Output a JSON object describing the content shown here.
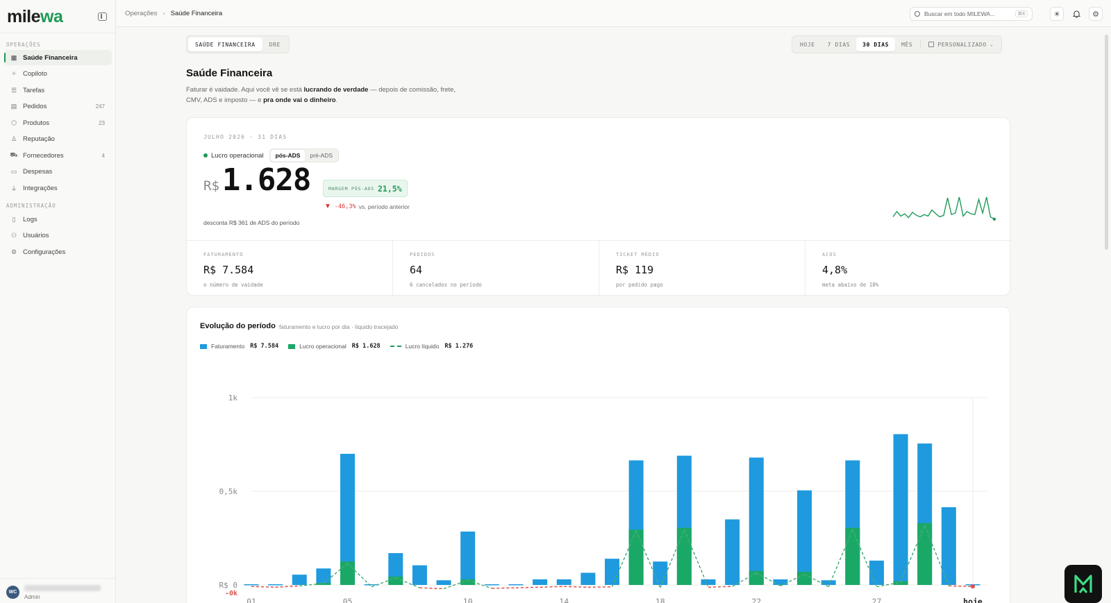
{
  "app": {
    "logo_main": "mile",
    "logo_accent": "wa",
    "brand_color": "#1e9a57"
  },
  "sidebar": {
    "section_ops": "OPERAÇÕES",
    "section_admin": "ADMINISTRAÇÃO",
    "items": [
      {
        "label": "Saúde Financeira",
        "icon": "grid-icon",
        "count": ""
      },
      {
        "label": "Copiloto",
        "icon": "sparkle-icon",
        "count": ""
      },
      {
        "label": "Tarefas",
        "icon": "checklist-icon",
        "count": ""
      },
      {
        "label": "Pedidos",
        "icon": "receipt-icon",
        "count": "247"
      },
      {
        "label": "Produtos",
        "icon": "box-icon",
        "count": "23"
      },
      {
        "label": "Reputação",
        "icon": "award-icon",
        "count": ""
      },
      {
        "label": "Fornecedores",
        "icon": "truck-icon",
        "count": "4"
      },
      {
        "label": "Despesas",
        "icon": "wallet-icon",
        "count": ""
      },
      {
        "label": "Integrações",
        "icon": "plug-icon",
        "count": ""
      }
    ],
    "admin_items": [
      {
        "label": "Logs",
        "icon": "file-icon"
      },
      {
        "label": "Usuários",
        "icon": "users-icon"
      },
      {
        "label": "Configurações",
        "icon": "gear-icon"
      }
    ],
    "user": {
      "initials": "WC",
      "role": "Admin"
    }
  },
  "topbar": {
    "breadcrumb_parent": "Operações",
    "breadcrumb_current": "Saúde Financeira",
    "search_placeholder": "Buscar em todo MILEWA...",
    "search_shortcut": "⌘K"
  },
  "view_toggle": {
    "options": [
      "SAÚDE FINANCEIRA",
      "DRE"
    ],
    "selected": "SAÚDE FINANCEIRA"
  },
  "range": {
    "options": [
      "HOJE",
      "7 DIAS",
      "30 DIAS",
      "MÊS"
    ],
    "selected": "30 DIAS",
    "custom": "PERSONALIZADO"
  },
  "page": {
    "title": "Saúde Financeira",
    "desc_1": "Faturar é vaidade. Aqui você vê se está ",
    "desc_b1": "lucrando de verdade",
    "desc_2": " — depois de comissão, frete, CMV, ADS e imposto — e ",
    "desc_b2": "pra onde vai o dinheiro",
    "desc_3": "."
  },
  "hero": {
    "period": "JULHO 2026 · 31 DIAS",
    "metric_name": "Lucro operacional",
    "ads_options": [
      "pós-ADS",
      "pré-ADS"
    ],
    "ads_selected": "pós-ADS",
    "currency": "R$",
    "value": "1.628",
    "margin_label": "MARGEM PÓS-ADS",
    "margin_value": "21,5%",
    "change_pct": "-46,3%",
    "change_text": "vs. período anterior",
    "note": "desconta R$ 361 de ADS do período",
    "sparkline": [
      5,
      12,
      6,
      9,
      4,
      11,
      7,
      5,
      8,
      6,
      14,
      9,
      5,
      7,
      30,
      8,
      10,
      31,
      6,
      12,
      9,
      8,
      28,
      10,
      31,
      5,
      2
    ]
  },
  "kpis": [
    {
      "label": "FATURAMENTO",
      "value": "R$ 7.584",
      "sub": "o número de vaidade"
    },
    {
      "label": "PEDIDOS",
      "value": "64",
      "sub": "6 cancelados no período"
    },
    {
      "label": "TICKET MÉDIO",
      "value": "R$ 119",
      "sub": "por pedido pago"
    },
    {
      "label": "ACOS",
      "value": "4,8%",
      "sub": "meta abaixo de 10%"
    }
  ],
  "chart_section": {
    "title": "Evolução do período",
    "subtitle": "faturamento e lucro por dia · líquido tracejado",
    "legend": [
      {
        "name": "Faturamento",
        "value": "R$ 7.584",
        "color": "#1f9ade"
      },
      {
        "name": "Lucro operacional",
        "value": "R$ 1.628",
        "color": "#1aa866"
      },
      {
        "name": "Lucro líquido",
        "value": "R$ 1.276",
        "color": "#1e9a57"
      }
    ]
  },
  "chart_data": {
    "type": "bar",
    "y_ticks": [
      "1k",
      "0,5k",
      "R$ 0",
      "-0k"
    ],
    "ylim": [
      -30,
      1000
    ],
    "x_tick_labels": {
      "1": "01",
      "5": "05",
      "10": "10",
      "14": "14",
      "18": "18",
      "22": "22",
      "27": "27",
      "31": "hoje"
    },
    "days": [
      1,
      2,
      3,
      4,
      5,
      6,
      7,
      8,
      9,
      10,
      11,
      12,
      13,
      14,
      15,
      16,
      17,
      18,
      19,
      20,
      21,
      22,
      23,
      24,
      25,
      26,
      27,
      28,
      29,
      30,
      31
    ],
    "series": [
      {
        "name": "Faturamento",
        "values": [
          0,
          0,
          55,
          88,
          700,
          0,
          170,
          105,
          25,
          285,
          0,
          0,
          30,
          30,
          65,
          140,
          665,
          125,
          690,
          30,
          350,
          680,
          30,
          505,
          25,
          665,
          130,
          805,
          755,
          415,
          0
        ]
      },
      {
        "name": "Lucro operacional",
        "values": [
          0,
          0,
          0,
          10,
          125,
          0,
          45,
          0,
          0,
          30,
          0,
          0,
          0,
          0,
          0,
          0,
          295,
          0,
          305,
          0,
          0,
          75,
          0,
          70,
          0,
          305,
          0,
          20,
          330,
          0,
          0
        ]
      },
      {
        "name": "Lucro líquido",
        "values": [
          -8,
          -12,
          -5,
          8,
          115,
          -10,
          38,
          -15,
          -20,
          25,
          -18,
          -15,
          -12,
          -8,
          -12,
          -10,
          290,
          -15,
          295,
          -12,
          -8,
          65,
          -5,
          58,
          -10,
          295,
          -10,
          15,
          318,
          -5,
          -8
        ]
      }
    ]
  }
}
